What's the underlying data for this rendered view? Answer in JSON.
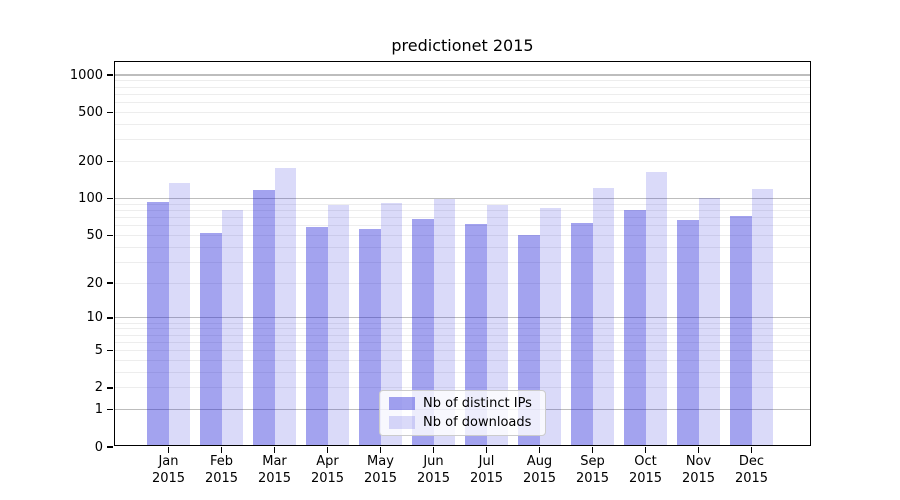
{
  "title": "predictionet 2015",
  "chart_data": {
    "type": "bar",
    "title": "predictionet 2015",
    "categories": [
      "Jan",
      "Feb",
      "Mar",
      "Apr",
      "May",
      "Jun",
      "Jul",
      "Aug",
      "Sep",
      "Oct",
      "Nov",
      "Dec"
    ],
    "year_label": "2015",
    "series": [
      {
        "name": "Nb of distinct IPs",
        "color": "rgba(25,25,215,0.40)",
        "values": [
          91,
          50,
          112,
          56,
          54,
          66,
          60,
          48,
          61,
          77,
          64,
          69
        ]
      },
      {
        "name": "Nb of downloads",
        "color": "rgba(25,25,215,0.16)",
        "values": [
          128,
          77,
          172,
          86,
          88,
          95,
          85,
          81,
          117,
          158,
          97,
          115
        ]
      }
    ],
    "y_scale": "log1p",
    "ylim": [
      0,
      1280
    ],
    "y_ticks_labeled": [
      0,
      1,
      2,
      5,
      10,
      20,
      50,
      100,
      200,
      500,
      1000
    ],
    "y_gridlines_major": [
      1,
      10,
      100,
      1000
    ],
    "y_gridlines_minor": [
      2,
      3,
      4,
      5,
      6,
      7,
      8,
      9,
      20,
      30,
      40,
      50,
      60,
      70,
      80,
      90,
      200,
      300,
      400,
      500,
      600,
      700,
      800,
      900
    ],
    "grid": true,
    "legend_position": "lower center",
    "colors": {
      "major_grid": "#bdbdbd",
      "minor_grid": "#ededed",
      "spine": "#000000",
      "background": "#ffffff"
    }
  }
}
